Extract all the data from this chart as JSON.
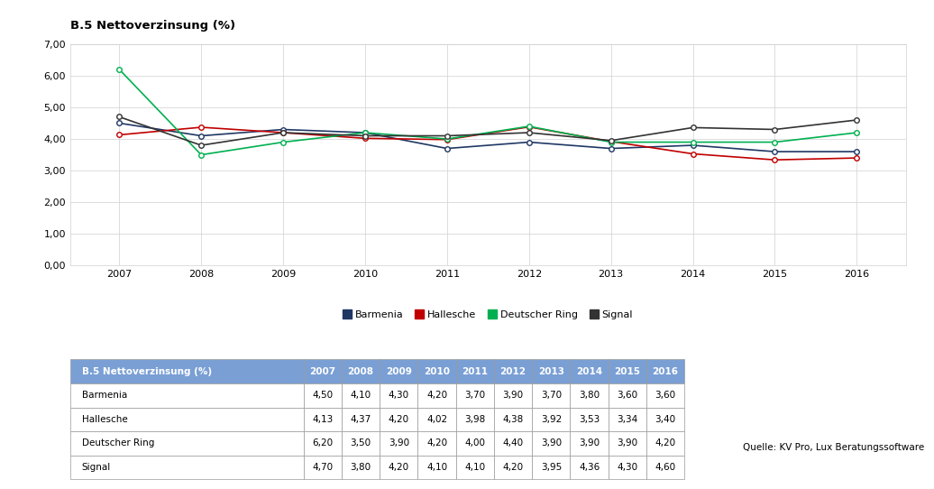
{
  "title": "B.5 Nettoverzinsung (%)",
  "years": [
    2007,
    2008,
    2009,
    2010,
    2011,
    2012,
    2013,
    2014,
    2015,
    2016
  ],
  "series_order": [
    "Barmenia",
    "Hallesche",
    "Deutscher Ring",
    "Signal"
  ],
  "series": {
    "Barmenia": [
      4.5,
      4.1,
      4.3,
      4.2,
      3.7,
      3.9,
      3.7,
      3.8,
      3.6,
      3.6
    ],
    "Hallesche": [
      4.13,
      4.37,
      4.2,
      4.02,
      3.98,
      4.38,
      3.92,
      3.53,
      3.34,
      3.4
    ],
    "Deutscher Ring": [
      6.2,
      3.5,
      3.9,
      4.2,
      4.0,
      4.4,
      3.9,
      3.9,
      3.9,
      4.2
    ],
    "Signal": [
      4.7,
      3.8,
      4.2,
      4.1,
      4.1,
      4.2,
      3.95,
      4.36,
      4.3,
      4.6
    ]
  },
  "colors": {
    "Barmenia": "#1f3864",
    "Hallesche": "#c00000",
    "Deutscher Ring": "#00b050",
    "Signal": "#333333"
  },
  "ylim": [
    0.0,
    7.0
  ],
  "yticks": [
    0.0,
    1.0,
    2.0,
    3.0,
    4.0,
    5.0,
    6.0,
    7.0
  ],
  "ytick_labels": [
    "0,00",
    "1,00",
    "2,00",
    "3,00",
    "4,00",
    "5,00",
    "6,00",
    "7,00"
  ],
  "source_text": "Quelle: KV Pro, Lux Beratungssoftware",
  "table_header_color": "#7a9fd4",
  "table_header_text_color": "#ffffff",
  "background_color": "#ffffff",
  "grid_color": "#d0d0d0",
  "border_color": "#999999"
}
